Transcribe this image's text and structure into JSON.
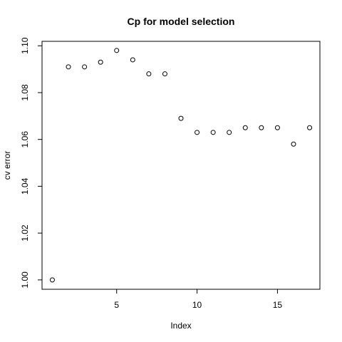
{
  "chart_data": {
    "type": "scatter",
    "title": "Cp for model selection",
    "xlabel": "Index",
    "ylabel": "cv error",
    "x": [
      1,
      2,
      3,
      4,
      5,
      6,
      7,
      8,
      9,
      10,
      11,
      12,
      13,
      14,
      15,
      16,
      17
    ],
    "y": [
      1.0,
      1.091,
      1.091,
      1.093,
      1.098,
      1.094,
      1.088,
      1.088,
      1.069,
      1.063,
      1.063,
      1.063,
      1.065,
      1.065,
      1.065,
      1.058,
      1.065
    ],
    "xlim": [
      0.36,
      17.64
    ],
    "ylim": [
      0.996,
      1.1019
    ],
    "x_ticks": [
      5,
      10,
      15
    ],
    "y_ticks": [
      1.0,
      1.02,
      1.04,
      1.06,
      1.08,
      1.1
    ],
    "y_tick_labels": [
      "1.00",
      "1.02",
      "1.04",
      "1.06",
      "1.08",
      "1.10"
    ],
    "grid": false,
    "marker": "open-circle"
  }
}
